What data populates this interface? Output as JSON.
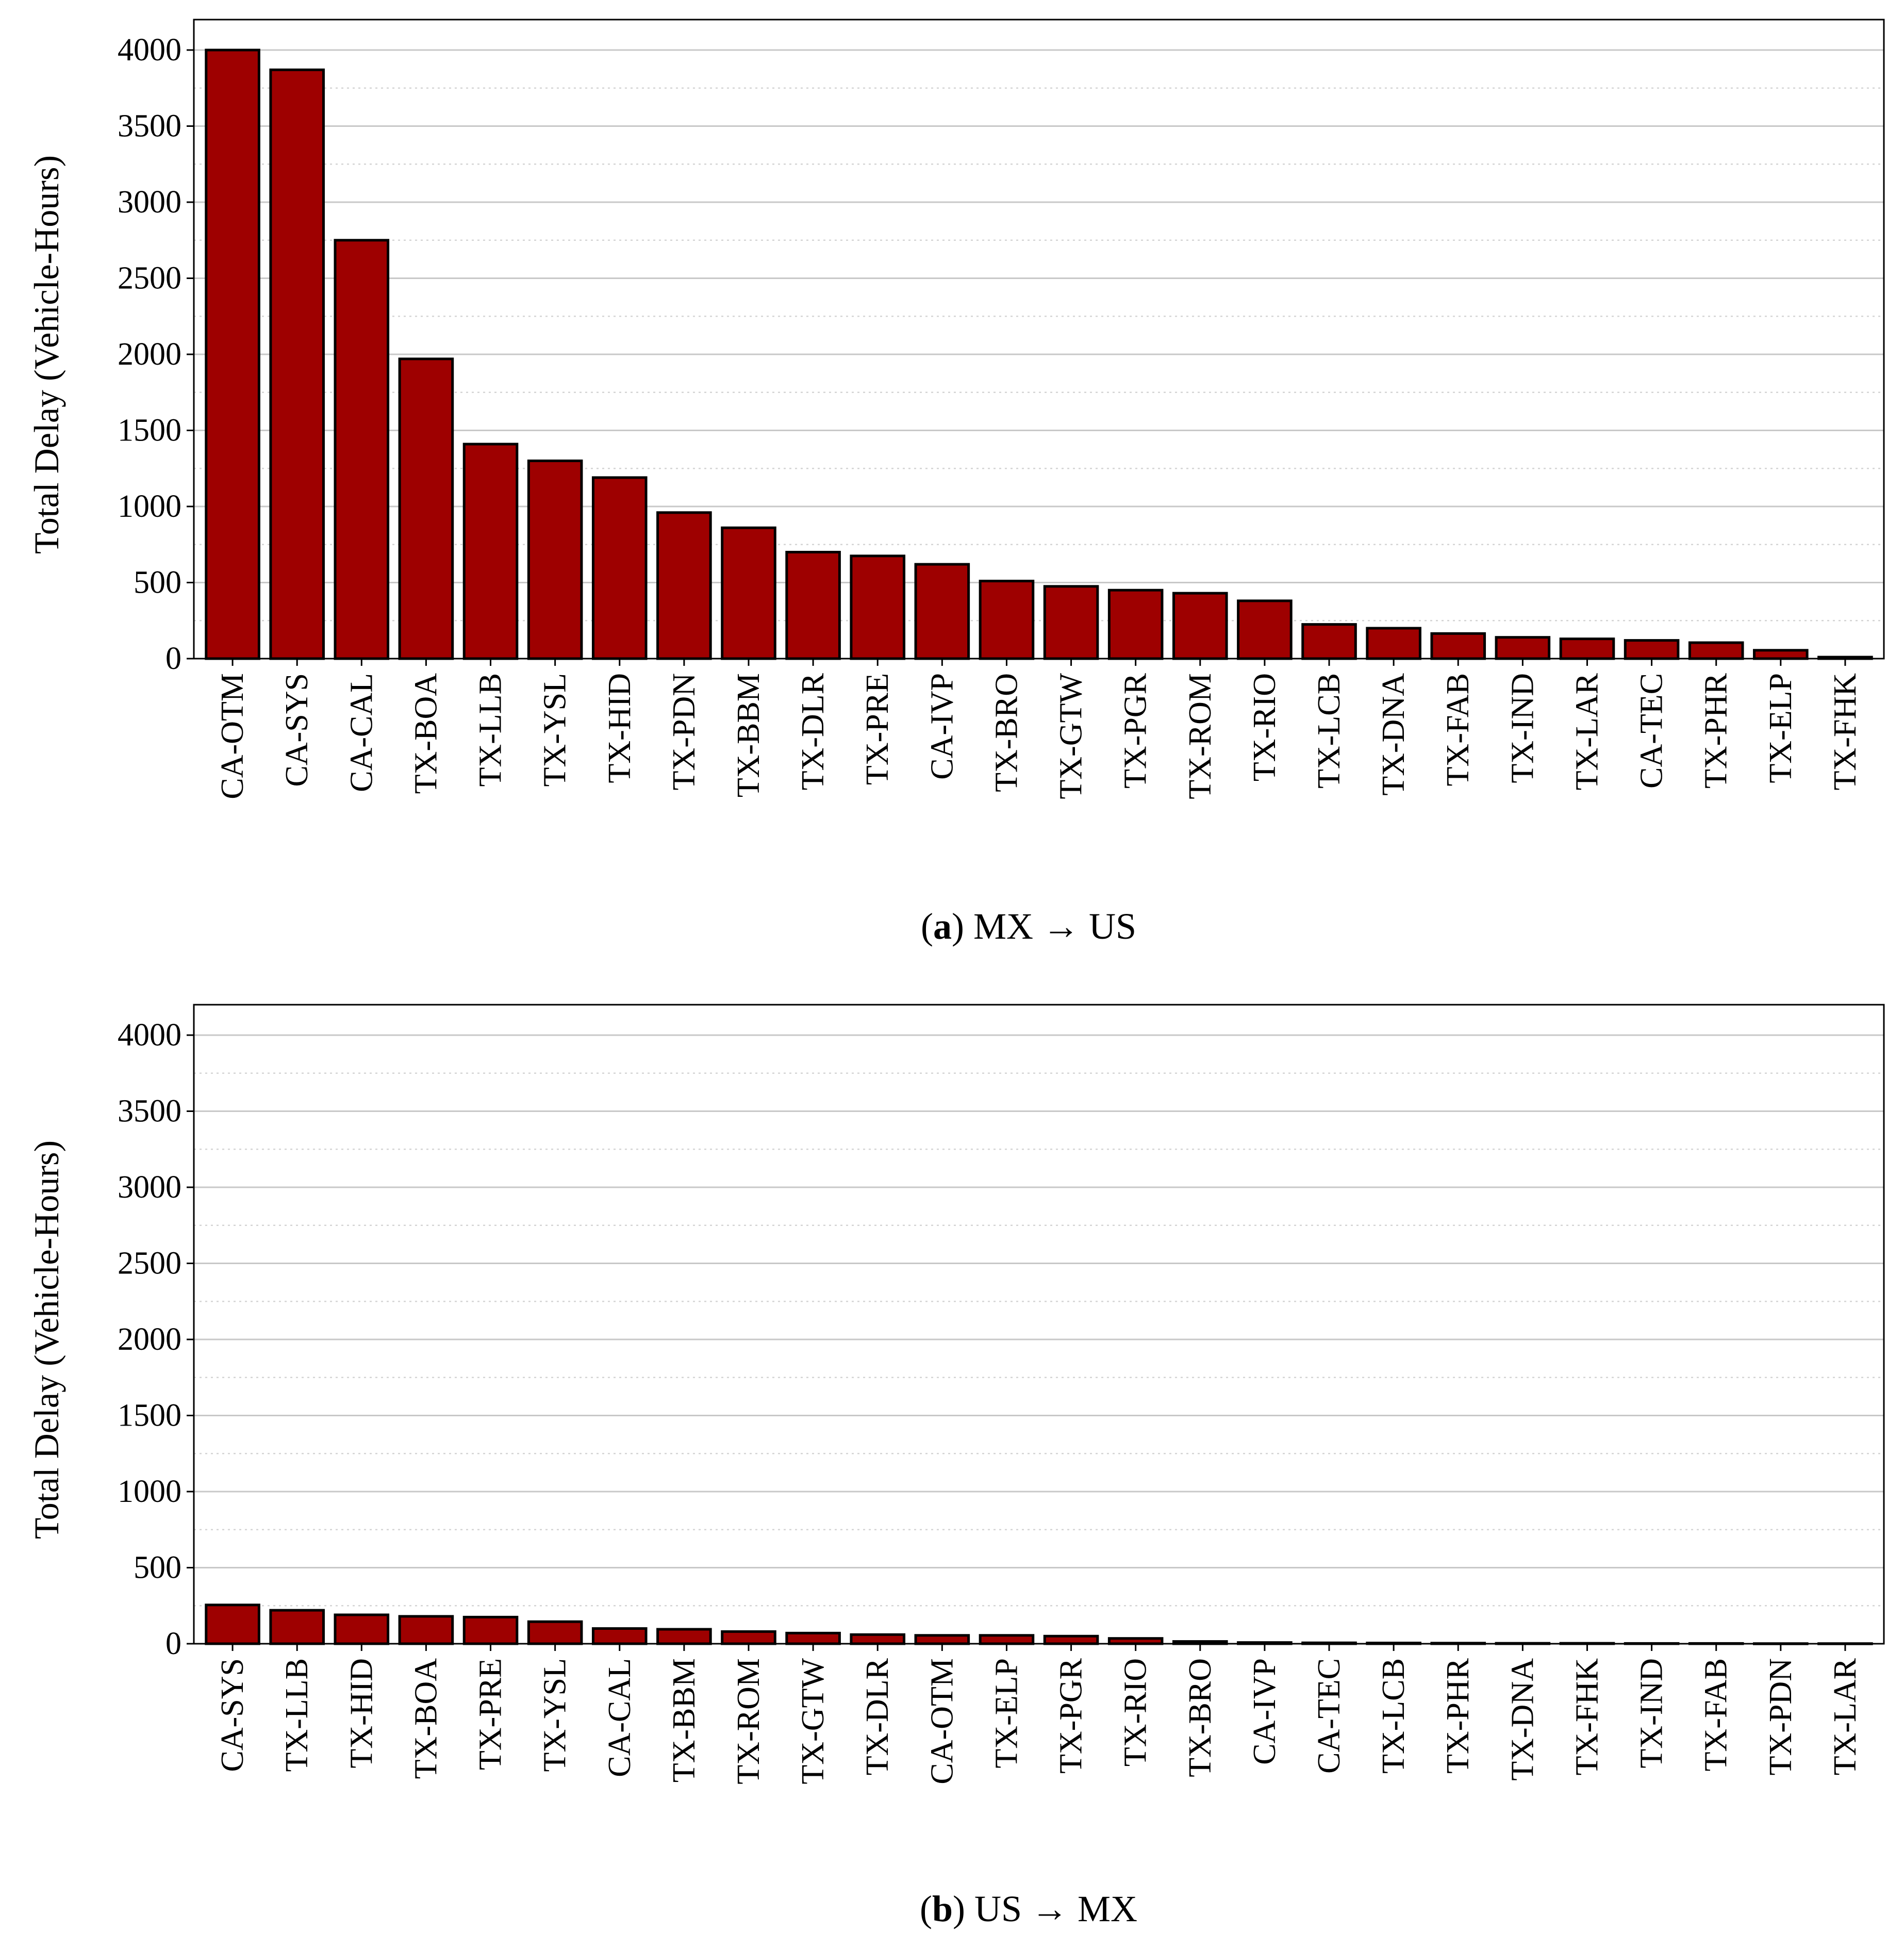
{
  "chart_data": [
    {
      "type": "bar",
      "panel_label": "a",
      "caption": "MX → US",
      "ylabel": "Total Delay (Vehicle-Hours)",
      "ylim": [
        0,
        4200
      ],
      "yticks": [
        0,
        500,
        1000,
        1500,
        2000,
        2500,
        3000,
        3500,
        4000
      ],
      "grid": true,
      "bar_color": "#9e0000",
      "categories": [
        "CA-OTM",
        "CA-SYS",
        "CA-CAL",
        "TX-BOA",
        "TX-LLB",
        "TX-YSL",
        "TX-HID",
        "TX-PDN",
        "TX-BBM",
        "TX-DLR",
        "TX-PRE",
        "CA-IVP",
        "TX-BRO",
        "TX-GTW",
        "TX-PGR",
        "TX-ROM",
        "TX-RIO",
        "TX-LCB",
        "TX-DNA",
        "TX-FAB",
        "TX-IND",
        "TX-LAR",
        "CA-TEC",
        "TX-PHR",
        "TX-ELP",
        "TX-FHK"
      ],
      "values": [
        4000,
        3870,
        2750,
        1970,
        1410,
        1300,
        1190,
        960,
        860,
        700,
        675,
        620,
        510,
        475,
        450,
        430,
        380,
        225,
        200,
        165,
        140,
        130,
        120,
        105,
        55,
        10
      ]
    },
    {
      "type": "bar",
      "panel_label": "b",
      "caption": "US → MX",
      "ylabel": "Total Delay (Vehicle-Hours)",
      "ylim": [
        0,
        4200
      ],
      "yticks": [
        0,
        500,
        1000,
        1500,
        2000,
        2500,
        3000,
        3500,
        4000
      ],
      "grid": true,
      "bar_color": "#9e0000",
      "categories": [
        "CA-SYS",
        "TX-LLB",
        "TX-HID",
        "TX-BOA",
        "TX-PRE",
        "TX-YSL",
        "CA-CAL",
        "TX-BBM",
        "TX-ROM",
        "TX-GTW",
        "TX-DLR",
        "CA-OTM",
        "TX-ELP",
        "TX-PGR",
        "TX-RIO",
        "TX-BRO",
        "CA-IVP",
        "CA-TEC",
        "TX-LCB",
        "TX-PHR",
        "TX-DNA",
        "TX-FHK",
        "TX-IND",
        "TX-FAB",
        "TX-PDN",
        "TX-LAR"
      ],
      "values": [
        255,
        220,
        190,
        180,
        175,
        145,
        100,
        95,
        80,
        70,
        60,
        55,
        55,
        50,
        35,
        15,
        8,
        6,
        5,
        4,
        3,
        3,
        2,
        2,
        1,
        1
      ]
    }
  ]
}
